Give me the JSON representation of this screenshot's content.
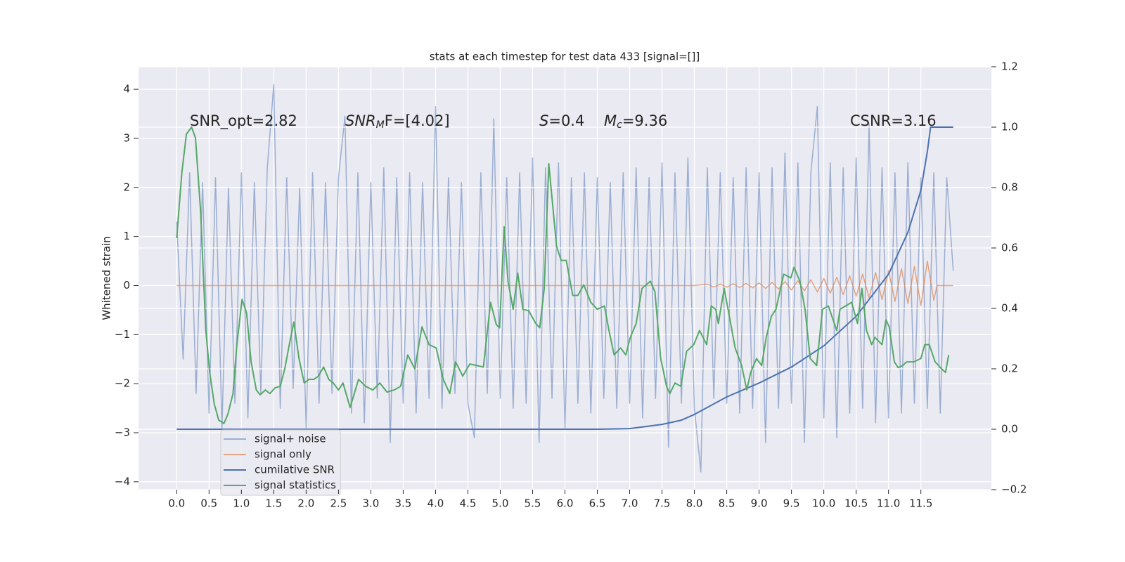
{
  "chart_data": {
    "type": "line",
    "title": "stats at each timestep for test data 433 [signal=[]]",
    "y_label": "Whitened strain",
    "annotations": [
      {
        "text": "SNR_opt=2.82"
      },
      {
        "main": "SNR",
        "sub": "M",
        "rest": "F=[4.02]"
      },
      {
        "main": "S",
        "rest": "=0.4"
      },
      {
        "main": "M",
        "sub": "c",
        "rest": "=9.36"
      },
      {
        "text": "CSNR=3.16"
      }
    ],
    "xlim": [
      -0.59,
      12.59
    ],
    "ylim": [
      -4.16,
      4.46
    ],
    "y2lim": [
      -0.2,
      1.2
    ],
    "xticks": [
      {
        "value": 0,
        "label": "0.0"
      },
      {
        "value": 0.5,
        "label": "0.5"
      },
      {
        "value": 1,
        "label": "1.0"
      },
      {
        "value": 1.5,
        "label": "1.5"
      },
      {
        "value": 2,
        "label": "2.0"
      },
      {
        "value": 2.5,
        "label": "2.5"
      },
      {
        "value": 3,
        "label": "3.0"
      },
      {
        "value": 3.5,
        "label": "3.5"
      },
      {
        "value": 4,
        "label": "4.0"
      },
      {
        "value": 4.5,
        "label": "4.5"
      },
      {
        "value": 5,
        "label": "5.0"
      },
      {
        "value": 5.5,
        "label": "5.5"
      },
      {
        "value": 6,
        "label": "6.0"
      },
      {
        "value": 6.5,
        "label": "6.5"
      },
      {
        "value": 7,
        "label": "7.0"
      },
      {
        "value": 7.5,
        "label": "7.5"
      },
      {
        "value": 8,
        "label": "8.0"
      },
      {
        "value": 8.5,
        "label": "8.5"
      },
      {
        "value": 9,
        "label": "9.0"
      },
      {
        "value": 9.5,
        "label": "9.5"
      },
      {
        "value": 10,
        "label": "10.0"
      },
      {
        "value": 10.5,
        "label": "10.5"
      },
      {
        "value": 11,
        "label": "11.0"
      },
      {
        "value": 11.5,
        "label": "11.5"
      }
    ],
    "yticks": [
      {
        "value": -4,
        "label": "−4"
      },
      {
        "value": -3,
        "label": "−3"
      },
      {
        "value": -2,
        "label": "−2"
      },
      {
        "value": -1,
        "label": "−1"
      },
      0,
      1,
      2,
      3,
      4
    ],
    "y2ticks": [
      {
        "value": -0.2,
        "label": "−0.2"
      },
      {
        "value": 0,
        "label": "0.0"
      },
      0.2,
      0.4,
      0.6,
      0.8,
      {
        "value": 1,
        "label": "1.0"
      },
      1.2
    ],
    "grid": true,
    "legend": "lower left",
    "series": [
      {
        "name": "signal+ noise",
        "color": "#4c72b0",
        "alpha": 0.5,
        "x": [
          0,
          0.1,
          0.2,
          0.3,
          0.4,
          0.5,
          0.6,
          0.7,
          0.8,
          0.9,
          1,
          1.1,
          1.2,
          1.3,
          1.4,
          1.5,
          1.6,
          1.7,
          1.8,
          1.9,
          2,
          2.1,
          2.2,
          2.3,
          2.4,
          2.5,
          2.6,
          2.7,
          2.8,
          2.9,
          3,
          3.1,
          3.2,
          3.3,
          3.4,
          3.5,
          3.6,
          3.7,
          3.8,
          3.9,
          4,
          4.1,
          4.2,
          4.3,
          4.4,
          4.5,
          4.6,
          4.7,
          4.8,
          4.9,
          5,
          5.1,
          5.2,
          5.3,
          5.4,
          5.5,
          5.6,
          5.7,
          5.8,
          5.9,
          6,
          6.1,
          6.2,
          6.3,
          6.4,
          6.5,
          6.6,
          6.7,
          6.8,
          6.9,
          7,
          7.1,
          7.2,
          7.3,
          7.4,
          7.5,
          7.6,
          7.7,
          7.8,
          7.9,
          8,
          8.1,
          8.2,
          8.3,
          8.4,
          8.5,
          8.6,
          8.7,
          8.8,
          8.9,
          9,
          9.1,
          9.2,
          9.3,
          9.4,
          9.5,
          9.6,
          9.7,
          9.8,
          9.9,
          10,
          10.1,
          10.2,
          10.3,
          10.4,
          10.5,
          10.6,
          10.7,
          10.8,
          10.9,
          11,
          11.1,
          11.2,
          11.3,
          11.4,
          11.5,
          11.6,
          11.7,
          11.8,
          11.9,
          12
        ],
        "values": [
          1.3,
          -1.5,
          2.3,
          -2.2,
          2.1,
          -2.6,
          2.2,
          -2.9,
          2.0,
          -2.4,
          2.3,
          -2.7,
          2.1,
          -2.2,
          2.4,
          4.1,
          -2.5,
          2.2,
          -2.1,
          2.0,
          -2.9,
          2.3,
          -2.4,
          2.1,
          -2.2,
          2.2,
          3.45,
          -2.6,
          2.3,
          -2.8,
          2.1,
          -2.3,
          2.4,
          -3.2,
          2.2,
          -2.4,
          2.3,
          -2.6,
          2.1,
          -2.3,
          3.65,
          -2.5,
          2.2,
          -2.2,
          2.1,
          -2.4,
          -3.1,
          2.3,
          -2.2,
          3.4,
          -2.3,
          2.2,
          -2.5,
          2.3,
          -2.4,
          2.6,
          -3.2,
          2.4,
          -2.3,
          2.5,
          -2.9,
          2.2,
          -2.4,
          2.3,
          -2.6,
          2.2,
          -2.3,
          2.1,
          -2.5,
          2.3,
          -2.4,
          2.4,
          -2.7,
          2.2,
          -2.3,
          2.5,
          -3.3,
          2.3,
          -2.4,
          2.6,
          -2.5,
          -3.8,
          2.4,
          -2.3,
          2.3,
          -2.4,
          2.2,
          -2.6,
          2.4,
          -2.5,
          2.3,
          -3.2,
          2.4,
          -2.5,
          2.7,
          -2.4,
          2.5,
          -3.2,
          2.3,
          3.65,
          -2.7,
          2.5,
          -3.1,
          2.4,
          -2.6,
          2.6,
          -2.5,
          3.3,
          -2.8,
          2.4,
          -2.7,
          2.3,
          -2.6,
          2.5,
          -2.4,
          2.2,
          -2.5,
          2.3,
          -2.6,
          2.2,
          0.3
        ]
      },
      {
        "name": "signal only",
        "color": "#dd8452",
        "alpha": 0.7,
        "x": [
          0,
          8,
          8.2,
          8.3,
          8.4,
          8.5,
          8.6,
          8.7,
          8.8,
          8.9,
          9,
          9.1,
          9.2,
          9.3,
          9.4,
          9.5,
          9.6,
          9.7,
          9.8,
          9.9,
          10,
          10.1,
          10.2,
          10.3,
          10.4,
          10.5,
          10.6,
          10.7,
          10.8,
          10.9,
          11,
          11.1,
          11.2,
          11.3,
          11.4,
          11.5,
          11.6,
          11.7,
          11.75,
          12
        ],
        "values": [
          0,
          0,
          0.03,
          -0.03,
          0.031,
          -0.033,
          0.036,
          -0.039,
          0.043,
          -0.047,
          0.052,
          -0.058,
          0.065,
          -0.072,
          0.08,
          -0.089,
          0.099,
          -0.109,
          0.12,
          -0.131,
          0.143,
          -0.156,
          0.17,
          -0.184,
          0.199,
          -0.215,
          0.232,
          -0.249,
          0.266,
          -0.285,
          0.304,
          -0.324,
          0.345,
          -0.366,
          0.388,
          -0.41,
          0.5,
          -0.3,
          0,
          0
        ]
      },
      {
        "name": "cumilative SNR",
        "color": "#4c72b0",
        "alpha": 1,
        "axis": "y2",
        "x": [
          0,
          6.5,
          7.0,
          7.5,
          7.8,
          8.0,
          8.5,
          9.0,
          9.5,
          10.0,
          10.5,
          11.0,
          11.3,
          11.5,
          11.6,
          11.65,
          12.0
        ],
        "values": [
          0,
          0,
          0.002,
          0.016,
          0.03,
          0.049,
          0.107,
          0.153,
          0.206,
          0.276,
          0.374,
          0.513,
          0.652,
          0.791,
          0.919,
          1.0,
          1.0
        ]
      },
      {
        "name": "signal statistics",
        "color": "#55a868",
        "alpha": 1,
        "axis": "y2",
        "x": [
          0,
          0.08,
          0.15,
          0.23,
          0.29,
          0.37,
          0.45,
          0.51,
          0.58,
          0.65,
          0.73,
          0.79,
          0.87,
          0.93,
          1.01,
          1.08,
          1.15,
          1.23,
          1.29,
          1.37,
          1.44,
          1.52,
          1.6,
          1.67,
          1.74,
          1.81,
          1.89,
          1.97,
          2.04,
          2.12,
          2.19,
          2.27,
          2.35,
          2.42,
          2.5,
          2.57,
          2.68,
          2.81,
          2.92,
          3.03,
          3.14,
          3.25,
          3.36,
          3.46,
          3.57,
          3.68,
          3.79,
          3.9,
          4.01,
          4.12,
          4.22,
          4.31,
          4.42,
          4.53,
          4.74,
          4.85,
          4.94,
          4.99,
          5.06,
          5.12,
          5.2,
          5.27,
          5.35,
          5.44,
          5.55,
          5.61,
          5.68,
          5.75,
          5.87,
          5.94,
          6.02,
          6.12,
          6.2,
          6.29,
          6.4,
          6.5,
          6.61,
          6.68,
          6.76,
          6.86,
          6.94,
          7.01,
          7.1,
          7.19,
          7.32,
          7.39,
          7.48,
          7.57,
          7.62,
          7.7,
          7.79,
          7.88,
          7.99,
          8.08,
          8.19,
          8.26,
          8.33,
          8.37,
          8.46,
          8.52,
          8.63,
          8.73,
          8.81,
          8.87,
          8.96,
          9.04,
          9.11,
          9.19,
          9.26,
          9.38,
          9.49,
          9.54,
          9.63,
          9.71,
          9.79,
          9.89,
          9.98,
          10.07,
          10.2,
          10.25,
          10.43,
          10.52,
          10.59,
          10.66,
          10.74,
          10.79,
          10.9,
          10.96,
          11.01,
          11.09,
          11.15,
          11.22,
          11.28,
          11.39,
          11.5,
          11.56,
          11.63,
          11.72,
          11.82,
          11.88,
          11.93
        ],
        "values": [
          0.633,
          0.85,
          0.977,
          1.0,
          0.965,
          0.72,
          0.327,
          0.188,
          0.084,
          0.03,
          0.019,
          0.049,
          0.118,
          0.28,
          0.43,
          0.385,
          0.223,
          0.13,
          0.114,
          0.13,
          0.118,
          0.137,
          0.142,
          0.2,
          0.28,
          0.355,
          0.234,
          0.153,
          0.165,
          0.165,
          0.176,
          0.206,
          0.165,
          0.153,
          0.13,
          0.153,
          0.072,
          0.165,
          0.142,
          0.13,
          0.153,
          0.123,
          0.13,
          0.142,
          0.246,
          0.2,
          0.339,
          0.28,
          0.269,
          0.165,
          0.118,
          0.223,
          0.176,
          0.216,
          0.206,
          0.42,
          0.346,
          0.336,
          0.67,
          0.49,
          0.397,
          0.517,
          0.397,
          0.392,
          0.35,
          0.336,
          0.466,
          0.879,
          0.606,
          0.559,
          0.559,
          0.443,
          0.443,
          0.478,
          0.42,
          0.397,
          0.408,
          0.327,
          0.246,
          0.269,
          0.246,
          0.304,
          0.35,
          0.466,
          0.49,
          0.455,
          0.234,
          0.142,
          0.118,
          0.153,
          0.142,
          0.258,
          0.28,
          0.327,
          0.28,
          0.408,
          0.397,
          0.35,
          0.466,
          0.397,
          0.269,
          0.211,
          0.13,
          0.188,
          0.234,
          0.211,
          0.304,
          0.374,
          0.397,
          0.513,
          0.501,
          0.536,
          0.49,
          0.397,
          0.234,
          0.211,
          0.397,
          0.408,
          0.327,
          0.397,
          0.42,
          0.35,
          0.466,
          0.327,
          0.28,
          0.304,
          0.28,
          0.362,
          0.339,
          0.223,
          0.204,
          0.211,
          0.223,
          0.223,
          0.234,
          0.28,
          0.28,
          0.223,
          0.2,
          0.188,
          0.246
        ]
      }
    ]
  }
}
